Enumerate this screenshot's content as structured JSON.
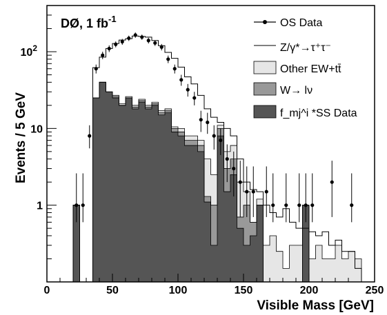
{
  "chart_data": {
    "type": "histogram",
    "experiment_label": "DØ, 1 fb",
    "experiment_label_sup": "-1",
    "xlabel": "Visible Mass  [GeV]",
    "ylabel": "Events / 5 GeV",
    "xlim": [
      0,
      250
    ],
    "ylim": [
      0.1,
      400
    ],
    "yscale": "log",
    "bin_width": 5,
    "x_ticks": [
      0,
      50,
      100,
      150,
      200,
      250
    ],
    "y_ticks": [
      {
        "value": 1,
        "label": "1"
      },
      {
        "value": 10,
        "label": "10"
      },
      {
        "value": 100,
        "label": "10",
        "sup": "2"
      }
    ],
    "legend": [
      {
        "key": "os_data",
        "label": "OS Data"
      },
      {
        "key": "ztt",
        "label": "Z/γ*→τ⁺τ⁻"
      },
      {
        "key": "other_ew",
        "label": "Other EW+tt̄"
      },
      {
        "key": "wlnu",
        "label": "W→ lν"
      },
      {
        "key": "fmj_ss",
        "label": "f_mj^i *SS Data"
      }
    ],
    "colors": {
      "fmj_ss": "#555555",
      "wlnu": "#999999",
      "other_ew": "#e6e6e6",
      "ztt_line": "#000000",
      "data": "#000000"
    },
    "bins_lo": [
      20,
      25,
      30,
      35,
      40,
      45,
      50,
      55,
      60,
      65,
      70,
      75,
      80,
      85,
      90,
      95,
      100,
      105,
      110,
      115,
      120,
      125,
      130,
      135,
      140,
      145,
      150,
      155,
      160,
      165,
      170,
      175,
      180,
      185,
      190,
      195,
      200,
      205,
      210,
      215,
      220,
      225,
      230,
      235,
      240
    ],
    "series": [
      {
        "name": "f_mj^i *SS Data",
        "key": "fmj_ss",
        "values": [
          1,
          0,
          0,
          25,
          40,
          30,
          25,
          20,
          25,
          18,
          22,
          18,
          20,
          15,
          16,
          9,
          8,
          6,
          6,
          5,
          1.1,
          0.3,
          8,
          1.5,
          2.5,
          0.5,
          0.3,
          0.4,
          1,
          0,
          0,
          0,
          0,
          0,
          0,
          1,
          0,
          0,
          0,
          0,
          0,
          0,
          0,
          0,
          0
        ]
      },
      {
        "name": "W→ lν",
        "key": "wlnu",
        "values": [
          1,
          0,
          0,
          25,
          40,
          30,
          26,
          20,
          25,
          19,
          23,
          19,
          21,
          16,
          17,
          10,
          9,
          7,
          7,
          6,
          1.3,
          1,
          10,
          3,
          4,
          0.7,
          1,
          0.6,
          1,
          0,
          0,
          0,
          0,
          0,
          0,
          1,
          0,
          0,
          0,
          0,
          0,
          0,
          0,
          0,
          0
        ]
      },
      {
        "name": "Other EW+tt̄",
        "key": "other_ew",
        "values": [
          1,
          0,
          0,
          25,
          40,
          30,
          27,
          21,
          26,
          20,
          24,
          20,
          22,
          17,
          18,
          10.5,
          10,
          8,
          8,
          7,
          4,
          2.5,
          11,
          5,
          6,
          2,
          1.5,
          0.6,
          1.2,
          0.3,
          0.4,
          0.25,
          0.15,
          0.3,
          0.3,
          1,
          0.2,
          0.3,
          0.2,
          0.2,
          0.3,
          0.2,
          0.25,
          0.2,
          0
        ]
      },
      {
        "name": "Z/γ*→τ⁺τ⁻",
        "key": "ztt",
        "values": [
          1,
          0,
          0,
          62,
          85,
          110,
          128,
          142,
          148,
          160,
          158,
          155,
          140,
          120,
          98,
          82,
          63,
          47,
          38,
          27,
          18,
          14,
          12,
          10,
          8,
          4,
          2,
          1.6,
          1.5,
          1,
          0.8,
          0.7,
          0.9,
          0.6,
          0.5,
          0.5,
          0.45,
          0.4,
          0.45,
          0.3,
          0.35,
          0.25,
          0.25,
          0.15,
          0
        ]
      }
    ],
    "data_points": [
      {
        "x": 22.5,
        "y": 1.0,
        "hi": 1.6,
        "lo": 0.4
      },
      {
        "x": 27.5,
        "y": 1.0,
        "hi": 1.6,
        "lo": 0.4
      },
      {
        "x": 32.5,
        "y": 8,
        "hi": 3,
        "lo": 2.5
      },
      {
        "x": 37.5,
        "y": 60,
        "hi": 8,
        "lo": 8
      },
      {
        "x": 42.5,
        "y": 90,
        "hi": 10,
        "lo": 10
      },
      {
        "x": 47.5,
        "y": 110,
        "hi": 11,
        "lo": 11
      },
      {
        "x": 52.5,
        "y": 125,
        "hi": 11,
        "lo": 11
      },
      {
        "x": 57.5,
        "y": 135,
        "hi": 12,
        "lo": 12
      },
      {
        "x": 62.5,
        "y": 150,
        "hi": 12,
        "lo": 12
      },
      {
        "x": 67.5,
        "y": 165,
        "hi": 13,
        "lo": 13
      },
      {
        "x": 72.5,
        "y": 155,
        "hi": 12,
        "lo": 12
      },
      {
        "x": 77.5,
        "y": 140,
        "hi": 12,
        "lo": 12
      },
      {
        "x": 82.5,
        "y": 130,
        "hi": 11,
        "lo": 11
      },
      {
        "x": 87.5,
        "y": 115,
        "hi": 11,
        "lo": 11
      },
      {
        "x": 92.5,
        "y": 80,
        "hi": 9,
        "lo": 9
      },
      {
        "x": 97.5,
        "y": 60,
        "hi": 8,
        "lo": 8
      },
      {
        "x": 102.5,
        "y": 43,
        "hi": 7,
        "lo": 7
      },
      {
        "x": 107.5,
        "y": 32,
        "hi": 6,
        "lo": 6
      },
      {
        "x": 112.5,
        "y": 25,
        "hi": 5,
        "lo": 5
      },
      {
        "x": 117.5,
        "y": 13,
        "hi": 4,
        "lo": 4
      },
      {
        "x": 122.5,
        "y": 12,
        "hi": 4,
        "lo": 3.5
      },
      {
        "x": 127.5,
        "y": 8,
        "hi": 3,
        "lo": 2.7
      },
      {
        "x": 132.5,
        "y": 7,
        "hi": 3,
        "lo": 2.5
      },
      {
        "x": 137.5,
        "y": 4,
        "hi": 2.2,
        "lo": 2
      },
      {
        "x": 142.5,
        "y": 3,
        "hi": 2,
        "lo": 1.7
      },
      {
        "x": 147.5,
        "y": 2,
        "hi": 1.8,
        "lo": 1.3
      },
      {
        "x": 152.5,
        "y": 1.5,
        "hi": 1.7,
        "lo": 0.8
      },
      {
        "x": 157.5,
        "y": 1.5,
        "hi": 1.7,
        "lo": 0.8
      },
      {
        "x": 167.5,
        "y": 1.5,
        "hi": 1.7,
        "lo": 0.8
      },
      {
        "x": 172.5,
        "y": 1,
        "hi": 1.6,
        "lo": 0.4
      },
      {
        "x": 182.5,
        "y": 1,
        "hi": 1.6,
        "lo": 0.4
      },
      {
        "x": 192.5,
        "y": 1,
        "hi": 1.6,
        "lo": 0.4
      },
      {
        "x": 197.5,
        "y": 1,
        "hi": 1.6,
        "lo": 0.4
      },
      {
        "x": 202.5,
        "y": 1,
        "hi": 1.6,
        "lo": 0.4
      },
      {
        "x": 217.5,
        "y": 2,
        "hi": 1.8,
        "lo": 1.3
      },
      {
        "x": 232.5,
        "y": 1,
        "hi": 1.6,
        "lo": 0.4
      }
    ]
  }
}
